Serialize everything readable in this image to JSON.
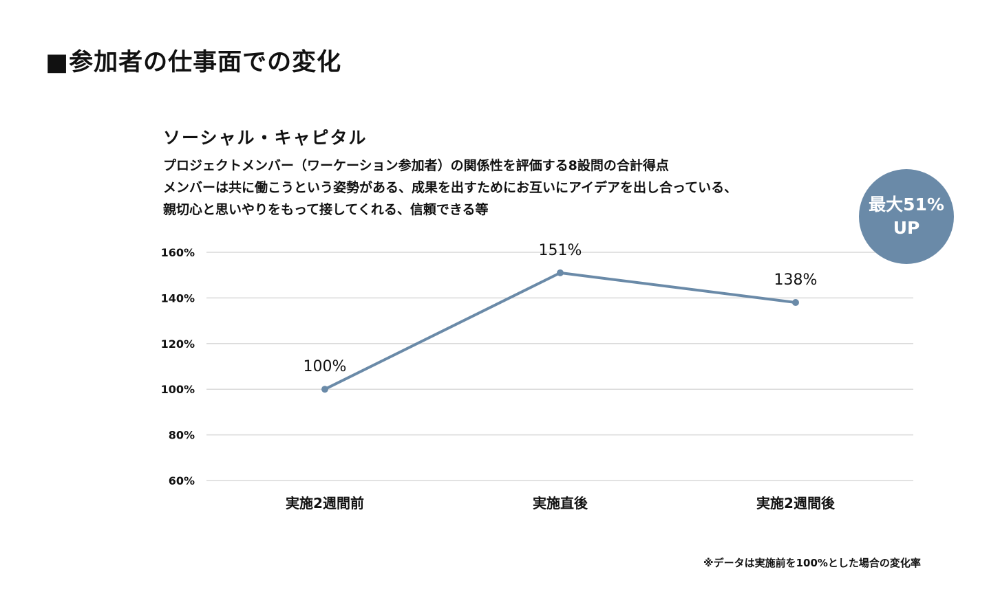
{
  "page_title": "■参加者の仕事面での変化",
  "chart_title": "ソーシャル・キャピタル",
  "description_lines": [
    "プロジェクトメンバー（ワーケーション参加者）の関係性を評価する8設問の合計得点",
    "メンバーは共に働こうという姿勢がある、成果を出すためにお互いにアイデアを出し合っている、",
    "親切心と思いやりをもって接してくれる、信頼できる等"
  ],
  "badge": {
    "line1": "最大51%",
    "line2": "UP",
    "color": "#6a8aa8"
  },
  "footnote": "※データは実施前を100%とした場合の変化率",
  "colors": {
    "line": "#6a8aa8",
    "grid": "#d9d9d9",
    "text": "#111111"
  },
  "chart_data": {
    "type": "line",
    "categories": [
      "実施2週間前",
      "実施直後",
      "実施2週間後"
    ],
    "series": [
      {
        "values": [
          100,
          151,
          138
        ],
        "labels": [
          "100%",
          "151%",
          "138%"
        ]
      }
    ],
    "ylim": [
      60,
      160
    ],
    "yticks": [
      160,
      140,
      120,
      100,
      80,
      60
    ],
    "ytick_labels": [
      "160%",
      "140%",
      "120%",
      "100%",
      "80%",
      "60%"
    ],
    "grid": true,
    "legend": "none"
  }
}
